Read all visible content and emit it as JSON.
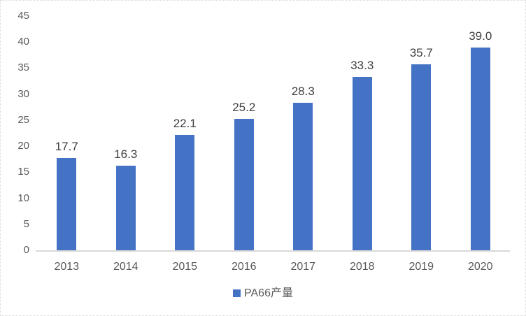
{
  "chart_data": {
    "type": "bar",
    "title": "",
    "xlabel": "",
    "ylabel": "",
    "categories": [
      "2013",
      "2014",
      "2015",
      "2016",
      "2017",
      "2018",
      "2019",
      "2020"
    ],
    "series": [
      {
        "name": "PA66产量",
        "values": [
          17.7,
          16.3,
          22.1,
          25.2,
          28.3,
          33.3,
          35.7,
          39.0
        ]
      }
    ],
    "data_labels": [
      "17.7",
      "16.3",
      "22.1",
      "25.2",
      "28.3",
      "33.3",
      "35.7",
      "39.0"
    ],
    "ylim": [
      0,
      45
    ],
    "yticks": [
      0,
      5,
      10,
      15,
      20,
      25,
      30,
      35,
      40,
      45
    ],
    "grid": false,
    "legend": {
      "position": "bottom",
      "label": "PA66产量"
    },
    "colors": {
      "bar": "#4472C4",
      "axis_line": "#D9D9D9",
      "tick_label": "#595959",
      "data_label": "#404040",
      "legend_label": "#595959",
      "frame_border": "#D9D9D9"
    }
  }
}
